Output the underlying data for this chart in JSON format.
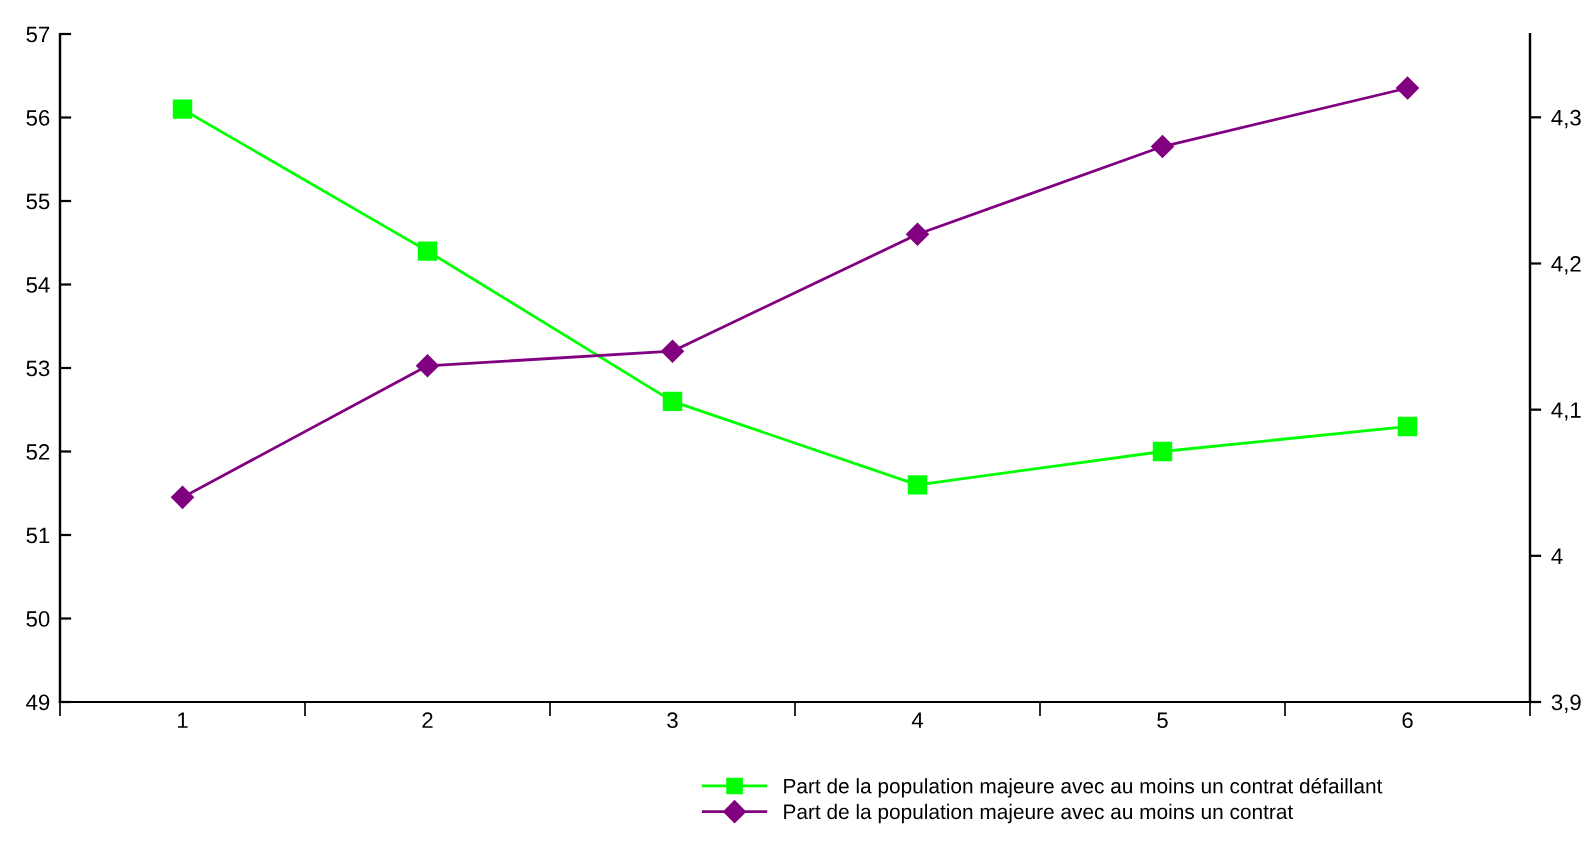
{
  "chart_data": {
    "type": "line",
    "categories": [
      "1",
      "2",
      "3",
      "4",
      "5",
      "6"
    ],
    "series": [
      {
        "name": "Part de la population majeure avec au moins un contrat défaillant",
        "color": "#00ff00",
        "marker": "square",
        "values": [
          56.1,
          54.4,
          52.6,
          51.6,
          52.0,
          52.3
        ]
      },
      {
        "name": "Part de la population majeure avec au moins un contrat",
        "color": "#800080",
        "marker": "diamond",
        "axis": "y2",
        "values": [
          4.04,
          4.13,
          4.14,
          4.22,
          4.28,
          4.32
        ]
      }
    ],
    "ylim": [
      49,
      57
    ],
    "yticks": [
      49,
      50,
      51,
      52,
      53,
      54,
      55,
      56,
      57
    ],
    "y2lim": [
      3.9,
      4.357
    ],
    "y2ticks": [
      {
        "value": 3.9,
        "label": "3,9"
      },
      {
        "value": 4,
        "label": "4"
      },
      {
        "value": 4.1,
        "label": "4,1"
      },
      {
        "value": 4.2,
        "label": "4,2"
      },
      {
        "value": 4.3,
        "label": "4,3"
      }
    ],
    "grid": false,
    "legend": "bottom right",
    "line_style": "solid"
  }
}
